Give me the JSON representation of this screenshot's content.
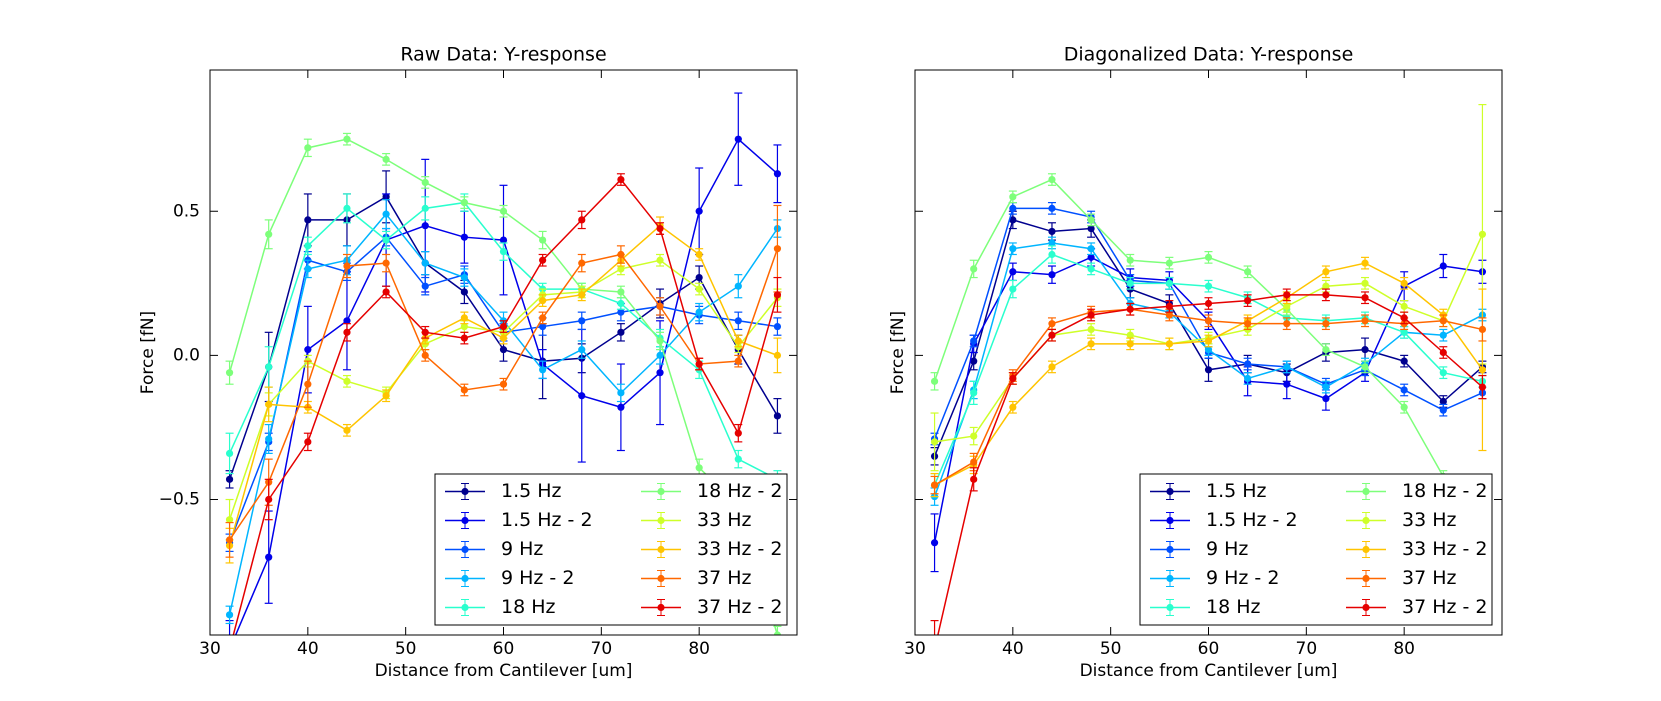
{
  "chart_data": [
    {
      "type": "line",
      "title": "Raw Data: Y-response",
      "xlabel": "Distance from Cantilever [um]",
      "ylabel": "Force [fN]",
      "xlim": [
        30,
        90
      ],
      "xticks": [
        30,
        40,
        50,
        60,
        70,
        80
      ],
      "ylim": [
        -0.97,
        0.99
      ],
      "yticks": [
        {
          "value": -0.5,
          "label": "−0.5"
        },
        {
          "value": 0,
          "label": "0.0"
        },
        0.5
      ],
      "legend": "lower right",
      "legend_columns": 2,
      "x": [
        32,
        36,
        40,
        44,
        48,
        52,
        56,
        60,
        64,
        68,
        72,
        76,
        80,
        84,
        88
      ],
      "series": [
        {
          "name": "1.5 Hz",
          "color": "#00008f",
          "values": [
            -0.43,
            -0.04,
            0.47,
            0.47,
            0.55,
            0.32,
            0.22,
            0.02,
            -0.02,
            -0.01,
            0.08,
            0.18,
            0.27,
            0.02,
            -0.21
          ],
          "errors": [
            0.03,
            0.12,
            0.09,
            0.09,
            0.09,
            0.04,
            0.04,
            0.04,
            0.13,
            0.05,
            0.03,
            0.05,
            0.04,
            0.05,
            0.06
          ]
        },
        {
          "name": "1.5 Hz - 2",
          "color": "#0000ea",
          "values": [
            -1.02,
            -0.7,
            0.02,
            0.12,
            0.4,
            0.45,
            0.41,
            0.4,
            -0.03,
            -0.14,
            -0.18,
            -0.06,
            0.5,
            0.75,
            0.63
          ],
          "errors": [
            0.1,
            0.16,
            0.15,
            0.17,
            0.16,
            0.23,
            0.09,
            0.19,
            0.05,
            0.23,
            0.15,
            0.18,
            0.15,
            0.16,
            0.1
          ]
        },
        {
          "name": "9 Hz",
          "color": "#0050ff",
          "values": [
            -0.65,
            -0.3,
            0.33,
            0.29,
            0.41,
            0.24,
            0.28,
            0.08,
            0.1,
            0.12,
            0.15,
            0.17,
            0.14,
            0.12,
            0.1
          ],
          "errors": [
            0.03,
            0.03,
            0.03,
            0.03,
            0.03,
            0.03,
            0.03,
            0.03,
            0.03,
            0.03,
            0.03,
            0.03,
            0.03,
            0.03,
            0.03
          ]
        },
        {
          "name": "9 Hz - 2",
          "color": "#00b5ff",
          "values": [
            -0.9,
            -0.29,
            0.3,
            0.33,
            0.49,
            0.32,
            0.27,
            0.12,
            -0.05,
            0.02,
            -0.13,
            0,
            0.15,
            0.24,
            0.44
          ],
          "errors": [
            0.03,
            0.05,
            0.03,
            0.05,
            0.05,
            0.04,
            0.03,
            0.03,
            0.03,
            0.03,
            0.03,
            0.03,
            0.03,
            0.04,
            0.03
          ]
        },
        {
          "name": "18 Hz",
          "color": "#29ffce",
          "values": [
            -0.34,
            -0.04,
            0.38,
            0.51,
            0.4,
            0.51,
            0.53,
            0.36,
            0.23,
            0.23,
            0.18,
            0.06,
            -0.05,
            -0.36,
            -0.43
          ],
          "errors": [
            0.07,
            0.07,
            0.03,
            0.05,
            0.03,
            0.04,
            0.03,
            0.03,
            0.02,
            0.02,
            0.02,
            0.03,
            0.03,
            0.03,
            0.03
          ]
        },
        {
          "name": "18 Hz - 2",
          "color": "#7dff7a",
          "values": [
            -0.06,
            0.42,
            0.72,
            0.75,
            0.68,
            0.6,
            0.53,
            0.5,
            0.4,
            0.23,
            0.22,
            0.05,
            -0.39,
            -0.52,
            -0.97
          ],
          "errors": [
            0.04,
            0.05,
            0.03,
            0.02,
            0.02,
            0.02,
            0.02,
            0.02,
            0.03,
            0.02,
            0.02,
            0.03,
            0.03,
            0.02,
            0.03
          ]
        },
        {
          "name": "33 Hz",
          "color": "#ceff29",
          "values": [
            -0.57,
            -0.17,
            -0.02,
            -0.09,
            -0.13,
            0.04,
            0.1,
            0.08,
            0.21,
            0.22,
            0.3,
            0.33,
            0.23,
            0.03,
            0.2
          ],
          "errors": [
            0.07,
            0.04,
            0.02,
            0.02,
            0.02,
            0.02,
            0.02,
            0.02,
            0.02,
            0.02,
            0.02,
            0.02,
            0.02,
            0.02,
            0.03
          ]
        },
        {
          "name": "33 Hz - 2",
          "color": "#ffc400",
          "values": [
            -0.66,
            -0.17,
            -0.18,
            -0.26,
            -0.14,
            0.06,
            0.13,
            0.06,
            0.19,
            0.21,
            0.33,
            0.45,
            0.35,
            0.05,
            0
          ],
          "errors": [
            0.06,
            0.06,
            0.02,
            0.02,
            0.02,
            0.02,
            0.02,
            0.02,
            0.02,
            0.02,
            0.02,
            0.03,
            0.02,
            0.02,
            0.06
          ]
        },
        {
          "name": "37 Hz",
          "color": "#ff6800",
          "values": [
            -0.64,
            -0.44,
            -0.1,
            0.31,
            0.32,
            0,
            -0.12,
            -0.1,
            0.13,
            0.32,
            0.35,
            0.17,
            -0.03,
            -0.02,
            0.37
          ],
          "errors": [
            0.06,
            0.08,
            0.08,
            0.04,
            0.03,
            0.02,
            0.02,
            0.02,
            0.02,
            0.03,
            0.03,
            0.03,
            0.02,
            0.02,
            0.15
          ]
        },
        {
          "name": "37 Hz - 2",
          "color": "#e50000",
          "values": [
            -1.02,
            -0.5,
            -0.3,
            0.08,
            0.22,
            0.08,
            0.06,
            0.1,
            0.33,
            0.47,
            0.61,
            0.44,
            -0.03,
            -0.27,
            0.21
          ],
          "errors": [
            0.04,
            0.07,
            0.03,
            0.03,
            0.02,
            0.02,
            0.02,
            0.02,
            0.02,
            0.03,
            0.02,
            0.02,
            0.02,
            0.03,
            0.06
          ]
        }
      ]
    },
    {
      "type": "line",
      "title": "Diagonalized Data: Y-response",
      "xlabel": "Distance from Cantilever [um]",
      "ylabel": "Force [fN]",
      "xlim": [
        30,
        90
      ],
      "xticks": [
        30,
        40,
        50,
        60,
        70,
        80
      ],
      "ylim": [
        -0.97,
        0.99
      ],
      "sharey": true,
      "legend": "lower right",
      "legend_columns": 2,
      "x": [
        32,
        36,
        40,
        44,
        48,
        52,
        56,
        60,
        64,
        68,
        72,
        76,
        80,
        84,
        88
      ],
      "series": [
        {
          "name": "1.5 Hz",
          "color": "#00008f",
          "values": [
            -0.35,
            -0.02,
            0.47,
            0.43,
            0.44,
            0.23,
            0.18,
            -0.05,
            -0.03,
            -0.06,
            0.01,
            0.02,
            -0.02,
            -0.16,
            -0.04
          ],
          "errors": [
            0.03,
            0.03,
            0.03,
            0.03,
            0.03,
            0.03,
            0.03,
            0.04,
            0.03,
            0.03,
            0.03,
            0.04,
            0.02,
            0.02,
            0.02
          ]
        },
        {
          "name": "1.5 Hz - 2",
          "color": "#0000ea",
          "values": [
            -0.65,
            0.04,
            0.29,
            0.28,
            0.34,
            0.27,
            0.26,
            0.12,
            -0.09,
            -0.1,
            -0.15,
            -0.06,
            0.24,
            0.31,
            0.29
          ],
          "errors": [
            0.1,
            0.03,
            0.03,
            0.03,
            0.03,
            0.03,
            0.03,
            0.03,
            0.05,
            0.05,
            0.04,
            0.03,
            0.05,
            0.04,
            0.04
          ]
        },
        {
          "name": "9 Hz",
          "color": "#0050ff",
          "values": [
            -0.29,
            0.05,
            0.51,
            0.51,
            0.48,
            0.26,
            0.25,
            0.01,
            -0.03,
            -0.04,
            -0.1,
            -0.05,
            -0.12,
            -0.19,
            -0.13
          ],
          "errors": [
            0.02,
            0.02,
            0.02,
            0.02,
            0.02,
            0.02,
            0.02,
            0.02,
            0.02,
            0.02,
            0.02,
            0.02,
            0.02,
            0.02,
            0.02
          ]
        },
        {
          "name": "9 Hz - 2",
          "color": "#00b5ff",
          "values": [
            -0.49,
            -0.12,
            0.37,
            0.39,
            0.37,
            0.18,
            0.15,
            0.02,
            -0.08,
            -0.04,
            -0.11,
            -0.03,
            0.08,
            0.07,
            0.14
          ],
          "errors": [
            0.03,
            0.03,
            0.02,
            0.02,
            0.02,
            0.02,
            0.02,
            0.02,
            0.02,
            0.02,
            0.02,
            0.02,
            0.02,
            0.02,
            0.02
          ]
        },
        {
          "name": "18 Hz",
          "color": "#29ffce",
          "values": [
            -0.45,
            -0.13,
            0.23,
            0.35,
            0.3,
            0.25,
            0.25,
            0.24,
            0.2,
            0.13,
            0.12,
            0.13,
            0.08,
            -0.06,
            -0.09
          ],
          "errors": [
            0.04,
            0.04,
            0.03,
            0.03,
            0.02,
            0.02,
            0.02,
            0.02,
            0.02,
            0.02,
            0.02,
            0.02,
            0.02,
            0.02,
            0.02
          ]
        },
        {
          "name": "18 Hz - 2",
          "color": "#7dff7a",
          "values": [
            -0.09,
            0.3,
            0.55,
            0.61,
            0.47,
            0.33,
            0.32,
            0.34,
            0.29,
            0.16,
            0.02,
            -0.04,
            -0.18,
            -0.42,
            -0.62
          ],
          "errors": [
            0.03,
            0.03,
            0.02,
            0.02,
            0.02,
            0.02,
            0.02,
            0.02,
            0.02,
            0.02,
            0.02,
            0.02,
            0.02,
            0.02,
            0.02
          ]
        },
        {
          "name": "33 Hz",
          "color": "#ceff29",
          "values": [
            -0.3,
            -0.28,
            -0.08,
            0.07,
            0.09,
            0.07,
            0.04,
            0.06,
            0.09,
            0.17,
            0.24,
            0.25,
            0.17,
            0.12,
            0.42
          ],
          "errors": [
            0.1,
            0.03,
            0.02,
            0.02,
            0.02,
            0.02,
            0.02,
            0.02,
            0.02,
            0.02,
            0.02,
            0.02,
            0.02,
            0.02,
            0.45
          ]
        },
        {
          "name": "33 Hz - 2",
          "color": "#ffc400",
          "values": [
            -0.45,
            -0.38,
            -0.18,
            -0.04,
            0.04,
            0.04,
            0.04,
            0.05,
            0.12,
            0.2,
            0.29,
            0.32,
            0.25,
            0.14,
            -0.05
          ],
          "errors": [
            0.04,
            0.03,
            0.02,
            0.02,
            0.02,
            0.02,
            0.02,
            0.02,
            0.02,
            0.02,
            0.02,
            0.02,
            0.02,
            0.02,
            0.28
          ]
        },
        {
          "name": "37 Hz",
          "color": "#ff6800",
          "values": [
            -0.45,
            -0.37,
            -0.07,
            0.11,
            0.15,
            0.16,
            0.14,
            0.12,
            0.11,
            0.11,
            0.11,
            0.12,
            0.11,
            0.12,
            0.09
          ],
          "errors": [
            0.03,
            0.03,
            0.02,
            0.02,
            0.02,
            0.02,
            0.02,
            0.02,
            0.02,
            0.02,
            0.02,
            0.02,
            0.02,
            0.02,
            0.04
          ]
        },
        {
          "name": "37 Hz - 2",
          "color": "#e50000",
          "values": [
            -1.02,
            -0.43,
            -0.08,
            0.07,
            0.14,
            0.16,
            0.17,
            0.18,
            0.19,
            0.21,
            0.21,
            0.2,
            0.13,
            0.01,
            -0.11
          ],
          "errors": [
            0.1,
            0.04,
            0.02,
            0.02,
            0.02,
            0.02,
            0.02,
            0.02,
            0.02,
            0.02,
            0.02,
            0.02,
            0.02,
            0.02,
            0.04
          ]
        }
      ]
    }
  ]
}
